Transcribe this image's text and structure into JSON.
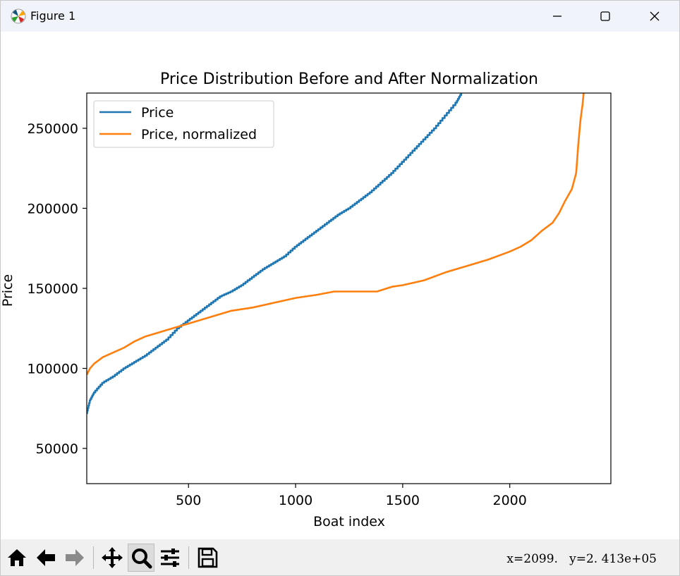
{
  "window": {
    "title": "Figure 1"
  },
  "toolbar": {
    "buttons": [
      {
        "name": "home-button",
        "icon": "home-icon"
      },
      {
        "name": "back-button",
        "icon": "arrow-left-icon"
      },
      {
        "name": "forward-button",
        "icon": "arrow-right-icon"
      },
      {
        "name": "pan-button",
        "icon": "move-icon"
      },
      {
        "name": "zoom-button",
        "icon": "magnifier-icon",
        "active": true
      },
      {
        "name": "configure-subplots-button",
        "icon": "sliders-icon"
      },
      {
        "name": "save-button",
        "icon": "floppy-icon"
      }
    ],
    "coords_x": "x=2099.",
    "coords_y": "y=2. 413e+05"
  },
  "chart_data": {
    "type": "line",
    "title": "Price Distribution Before and After Normalization",
    "xlabel": "Boat index",
    "ylabel": "Price",
    "xlim": [
      25,
      2472
    ],
    "ylim": [
      28000,
      272000
    ],
    "xticks": [
      500,
      1000,
      1500,
      2000
    ],
    "xtick_labels": [
      "500",
      "1000",
      "1500",
      "2000"
    ],
    "yticks": [
      50000,
      100000,
      150000,
      200000,
      250000
    ],
    "ytick_labels": [
      "50000",
      "100000",
      "150000",
      "200000",
      "250000"
    ],
    "grid": false,
    "legend_position": "upper-left",
    "series": [
      {
        "name": "Price",
        "color": "#1f77b4",
        "style": "stepped",
        "x": [
          25,
          40,
          60,
          100,
          150,
          200,
          250,
          300,
          350,
          400,
          450,
          500,
          550,
          600,
          650,
          700,
          750,
          800,
          850,
          900,
          950,
          1000,
          1050,
          1100,
          1150,
          1200,
          1250,
          1300,
          1350,
          1400,
          1450,
          1500,
          1550,
          1600,
          1650,
          1700,
          1750,
          1775
        ],
        "y": [
          72000,
          80000,
          85000,
          91000,
          95000,
          100000,
          104000,
          108000,
          113000,
          118000,
          125000,
          130000,
          135000,
          140000,
          145000,
          148000,
          152000,
          157000,
          162000,
          166000,
          170000,
          176000,
          181000,
          186000,
          191000,
          196000,
          200000,
          205000,
          210000,
          216000,
          222000,
          229000,
          236000,
          243000,
          250000,
          258000,
          266000,
          272000
        ]
      },
      {
        "name": "Price, normalized",
        "color": "#ff7f0e",
        "style": "smooth",
        "x": [
          25,
          40,
          60,
          100,
          150,
          200,
          250,
          300,
          350,
          400,
          450,
          500,
          600,
          700,
          800,
          900,
          1000,
          1100,
          1180,
          1300,
          1380,
          1450,
          1500,
          1600,
          1700,
          1800,
          1900,
          2000,
          2050,
          2100,
          2150,
          2200,
          2230,
          2260,
          2290,
          2310,
          2320,
          2330,
          2340,
          2345
        ],
        "y": [
          96000,
          100000,
          103000,
          107000,
          110000,
          113000,
          117000,
          120000,
          122000,
          124000,
          126000,
          128000,
          132000,
          136000,
          138000,
          141000,
          144000,
          146000,
          148000,
          148000,
          148000,
          151000,
          152000,
          155000,
          160000,
          164000,
          168000,
          173000,
          176000,
          180000,
          186000,
          191000,
          197000,
          205000,
          212000,
          222000,
          240000,
          255000,
          265000,
          272000
        ]
      }
    ]
  }
}
